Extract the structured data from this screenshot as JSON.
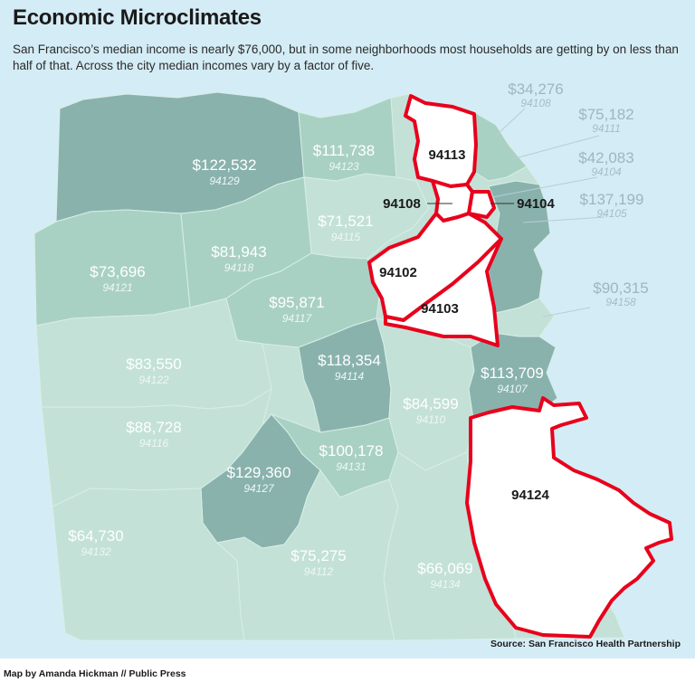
{
  "title": "Economic Microclimates",
  "subtitle": "San Francisco’s median income is nearly $76,000, but in some neighborhoods most households are getting by on less than half of that. Across the city median incomes vary by a factor of five.",
  "source": "Source: San Francisco Health Partnership",
  "credit": "Map by Amanda Hickman // Public Press",
  "colors": {
    "water": "#d4ecf5",
    "land_light": "#c3e1d7",
    "land_mid": "#a9d1c3",
    "land_dark": "#89b2ad",
    "highlight_stroke": "#e8001c",
    "highlight_fill": "#ffffff"
  },
  "zip_areas": [
    {
      "zip": "94129",
      "income": "$122,532"
    },
    {
      "zip": "94123",
      "income": "$111,738"
    },
    {
      "zip": "94115",
      "income": "$71,521"
    },
    {
      "zip": "94118",
      "income": "$81,943"
    },
    {
      "zip": "94121",
      "income": "$73,696"
    },
    {
      "zip": "94117",
      "income": "$95,871"
    },
    {
      "zip": "94122",
      "income": "$83,550"
    },
    {
      "zip": "94114",
      "income": "$118,354"
    },
    {
      "zip": "94116",
      "income": "$88,728"
    },
    {
      "zip": "94110",
      "income": "$84,599"
    },
    {
      "zip": "94107",
      "income": "$113,709"
    },
    {
      "zip": "94127",
      "income": "$129,360"
    },
    {
      "zip": "94131",
      "income": "$100,178"
    },
    {
      "zip": "94132",
      "income": "$64,730"
    },
    {
      "zip": "94112",
      "income": "$75,275"
    },
    {
      "zip": "94134",
      "income": "$66,069"
    }
  ],
  "callouts": [
    {
      "zip": "94108",
      "income": "$34,276"
    },
    {
      "zip": "94111",
      "income": "$75,182"
    },
    {
      "zip": "94104",
      "income": "$42,083"
    },
    {
      "zip": "94105",
      "income": "$137,199"
    },
    {
      "zip": "94158",
      "income": "$90,315"
    }
  ],
  "highlighted": [
    "94113",
    "94108",
    "94104",
    "94102",
    "94103",
    "94124"
  ]
}
